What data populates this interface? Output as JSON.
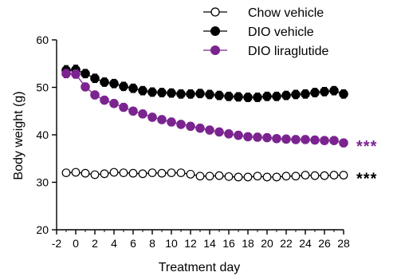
{
  "chart_data": {
    "type": "line",
    "title": "",
    "xlabel": "Treatment day",
    "ylabel": "Body weight (g)",
    "xlim": [
      -2,
      28
    ],
    "ylim": [
      20,
      60
    ],
    "x_ticks": [
      "-2",
      "0",
      "2",
      "4",
      "6",
      "8",
      "10",
      "12",
      "14",
      "16",
      "18",
      "20",
      "22",
      "24",
      "26",
      "28"
    ],
    "y_ticks": [
      "20",
      "30",
      "40",
      "50",
      "60"
    ],
    "grid": false,
    "legend_position": "top",
    "x": [
      -1,
      0,
      1,
      2,
      3,
      4,
      5,
      6,
      7,
      8,
      9,
      10,
      11,
      12,
      13,
      14,
      15,
      16,
      17,
      18,
      19,
      20,
      21,
      22,
      23,
      24,
      25,
      26,
      27,
      28
    ],
    "series": [
      {
        "name": "Chow vehicle",
        "color": "#000000",
        "marker": "open-circle",
        "values": [
          32.0,
          32.1,
          31.9,
          31.6,
          31.8,
          32.1,
          32.0,
          31.9,
          31.8,
          32.0,
          31.9,
          32.0,
          32.0,
          31.7,
          31.3,
          31.3,
          31.4,
          31.2,
          31.1,
          31.1,
          31.3,
          31.1,
          31.1,
          31.3,
          31.3,
          31.5,
          31.4,
          31.4,
          31.5,
          31.5
        ],
        "errors": [
          0.6,
          0.6,
          0.5,
          0.5,
          0.5,
          0.5,
          0.5,
          0.5,
          0.5,
          0.5,
          0.5,
          0.5,
          0.5,
          0.5,
          0.5,
          0.5,
          0.5,
          0.5,
          0.5,
          0.5,
          0.5,
          0.5,
          0.5,
          0.5,
          0.5,
          0.5,
          0.5,
          0.5,
          0.5,
          0.5
        ]
      },
      {
        "name": "DIO vehicle",
        "color": "#000000",
        "marker": "filled-circle",
        "values": [
          53.6,
          53.7,
          52.9,
          51.9,
          51.1,
          50.8,
          50.2,
          49.8,
          49.3,
          49.0,
          48.9,
          48.8,
          48.6,
          48.6,
          48.7,
          48.5,
          48.3,
          48.1,
          48.0,
          47.9,
          47.9,
          48.1,
          48.1,
          48.3,
          48.5,
          48.6,
          48.9,
          49.1,
          49.3,
          48.6
        ],
        "errors": [
          1.0,
          1.0,
          0.9,
          0.9,
          0.9,
          0.9,
          0.9,
          0.9,
          0.9,
          0.9,
          0.9,
          0.9,
          0.9,
          0.9,
          0.9,
          0.9,
          0.9,
          0.9,
          0.9,
          0.9,
          0.9,
          0.9,
          0.9,
          0.9,
          0.9,
          0.9,
          0.9,
          0.9,
          0.9,
          0.9
        ]
      },
      {
        "name": "DIO liraglutide",
        "color": "#7b2490",
        "marker": "filled-circle",
        "values": [
          52.9,
          52.8,
          50.1,
          48.4,
          47.3,
          46.6,
          45.8,
          45.0,
          44.4,
          43.7,
          43.2,
          42.7,
          42.2,
          41.8,
          41.4,
          41.0,
          40.6,
          40.2,
          39.9,
          39.6,
          39.5,
          39.4,
          39.2,
          39.1,
          39.0,
          39.0,
          38.9,
          38.8,
          38.8,
          38.3
        ],
        "errors": [
          0.9,
          0.9,
          0.8,
          0.8,
          0.8,
          0.8,
          0.8,
          0.8,
          0.8,
          0.8,
          0.8,
          0.8,
          0.8,
          0.8,
          0.8,
          0.8,
          0.8,
          0.8,
          0.8,
          0.8,
          0.8,
          0.8,
          0.8,
          0.8,
          0.8,
          0.8,
          0.8,
          0.8,
          0.8,
          0.8
        ]
      }
    ],
    "annotations": [
      {
        "text": "***",
        "series": "DIO liraglutide",
        "color": "#7b2490"
      },
      {
        "text": "***",
        "series": "Chow vehicle",
        "color": "#000000"
      }
    ]
  }
}
